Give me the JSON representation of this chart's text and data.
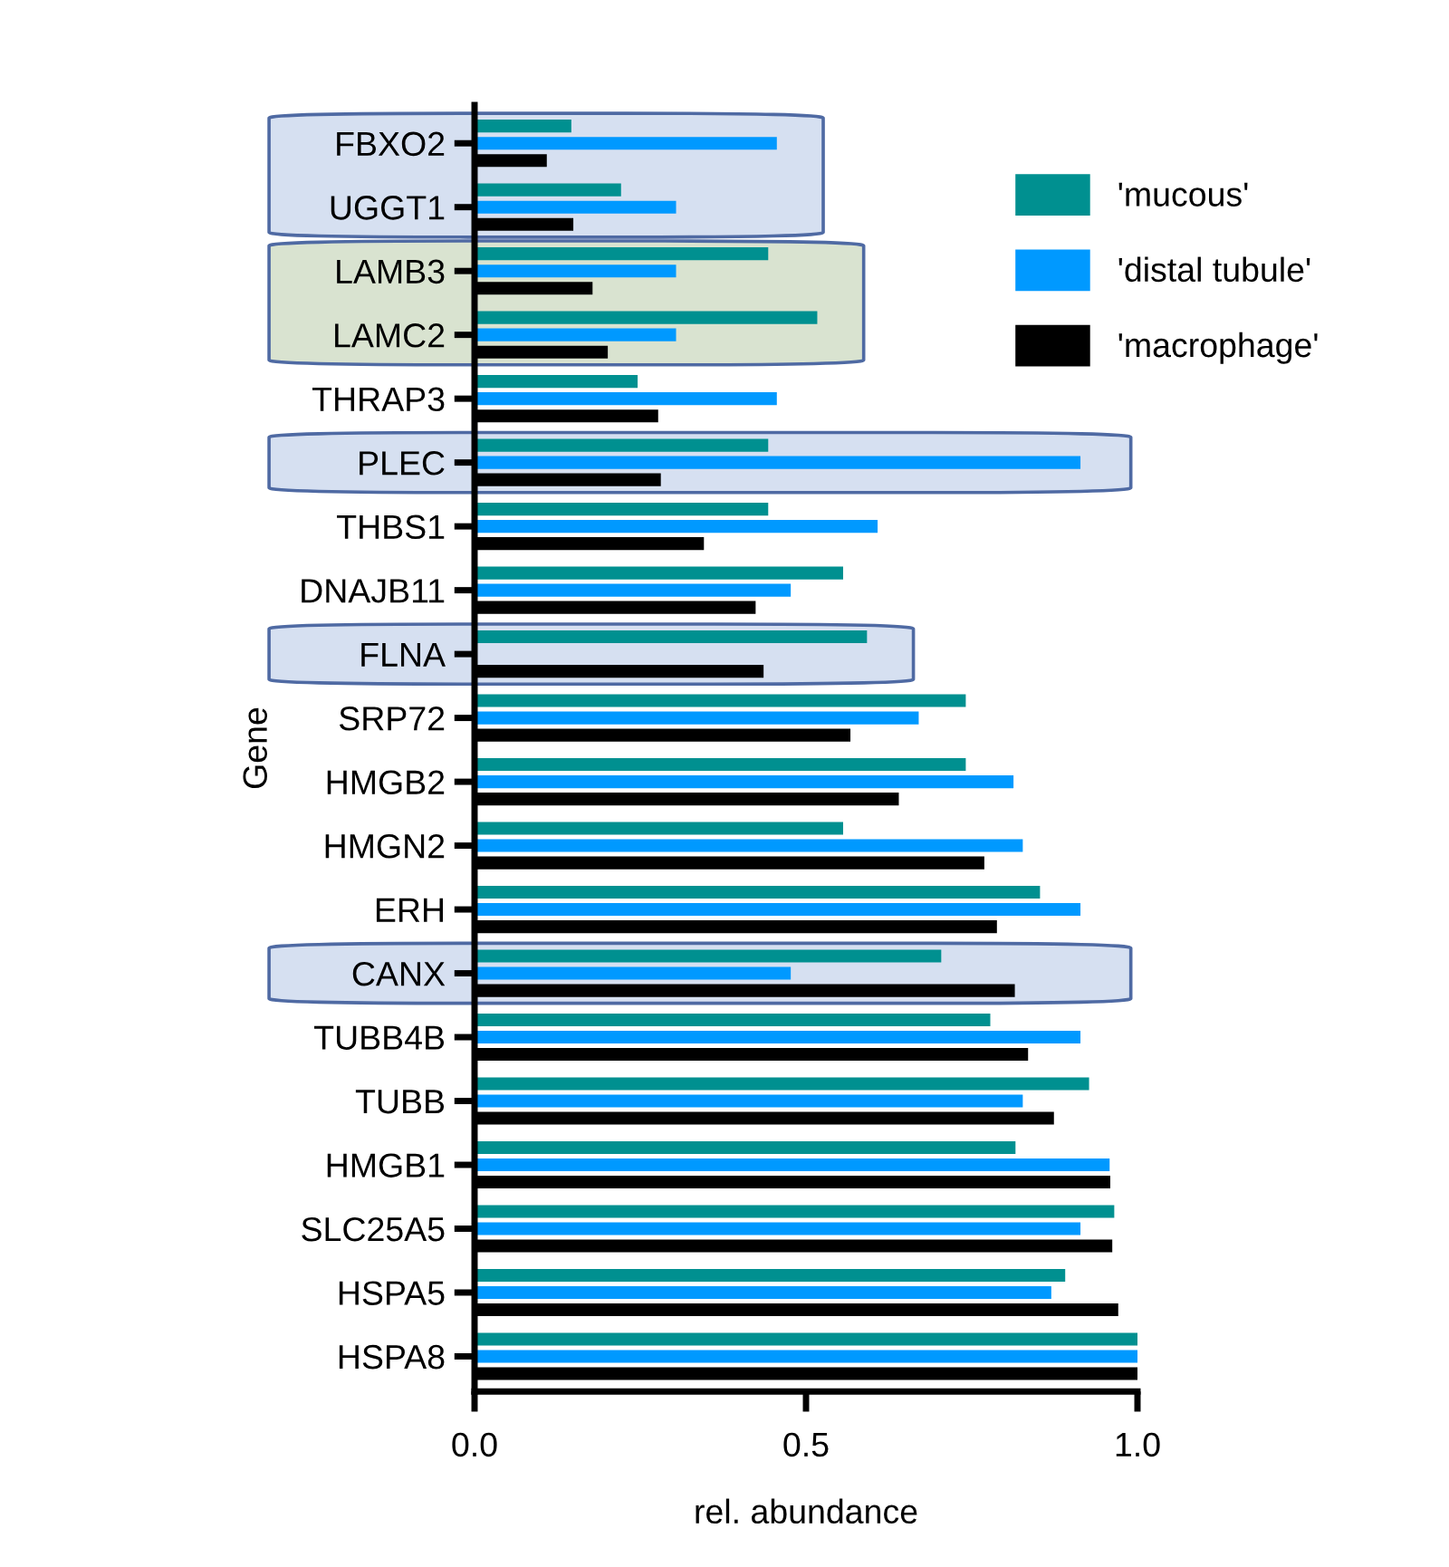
{
  "chart_data": {
    "type": "bar",
    "orientation": "horizontal",
    "xlabel": "rel. abundance",
    "ylabel": "Gene",
    "categories": [
      "FBXO2",
      "UGGT1",
      "LAMB3",
      "LAMC2",
      "THRAP3",
      "PLEC",
      "THBS1",
      "DNAJB11",
      "FLNA",
      "SRP72",
      "HMGB2",
      "HMGN2",
      "ERH",
      "CANX",
      "TUBB4B",
      "TUBB",
      "HMGB1",
      "SLC25A5",
      "HSPA5",
      "HSPA8"
    ],
    "series": [
      {
        "name": "'mucous'",
        "color": "#009090",
        "values": [
          0.146,
          0.221,
          0.443,
          0.517,
          0.246,
          0.443,
          0.443,
          0.556,
          0.592,
          0.741,
          0.741,
          0.556,
          0.853,
          0.704,
          0.778,
          0.927,
          0.816,
          0.965,
          0.891,
          1.0
        ]
      },
      {
        "name": "'distal tubule'",
        "color": "#0099ff",
        "values": [
          0.456,
          0.304,
          0.304,
          0.304,
          0.456,
          0.914,
          0.608,
          0.477,
          null,
          0.67,
          0.813,
          0.827,
          0.914,
          0.477,
          0.914,
          0.827,
          0.958,
          0.914,
          0.87,
          1.0
        ]
      },
      {
        "name": "'macrophage'",
        "color": "#000000",
        "values": [
          0.109,
          0.149,
          0.178,
          0.201,
          0.277,
          0.281,
          0.346,
          0.424,
          0.436,
          0.567,
          0.64,
          0.769,
          0.788,
          0.815,
          0.835,
          0.874,
          0.959,
          0.962,
          0.971,
          1.0
        ]
      }
    ],
    "xlim": [
      0,
      1
    ],
    "xticks": [
      {
        "value": 0,
        "label": "0.0"
      },
      0.5,
      {
        "value": 1,
        "label": "1.0"
      }
    ],
    "bands": [
      {
        "axis": "y",
        "from": "FBXO2",
        "to": "UGGT1",
        "color": "#d2ddf0"
      },
      {
        "axis": "y",
        "from": "LAMB3",
        "to": "LAMC2",
        "color": "#d5e0cc"
      },
      {
        "axis": "y",
        "from": "PLEC",
        "to": "PLEC",
        "color": "#d2ddf0"
      },
      {
        "axis": "y",
        "from": "FLNA",
        "to": "FLNA",
        "color": "#d2ddf0"
      },
      {
        "axis": "y",
        "from": "CANX",
        "to": "CANX",
        "color": "#d2ddf0"
      }
    ],
    "grid": false,
    "legend": "top right"
  }
}
